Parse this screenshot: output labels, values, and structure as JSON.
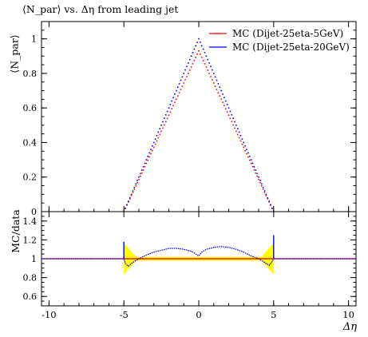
{
  "chart_data": [
    {
      "type": "scatter",
      "title": "⟨N_par⟩ vs. Δη from leading jet",
      "ylabel": "⟨N_par⟩",
      "xlabel": "",
      "xlim": [
        -10.5,
        10.5
      ],
      "ylim": [
        0,
        1.1
      ],
      "x_ticks": [
        -10,
        -5,
        0,
        5,
        10
      ],
      "y_ticks": [
        0,
        0.2,
        0.4,
        0.6,
        0.8,
        1
      ],
      "y_tick_labels": [
        "0",
        "0.2",
        "0.4",
        "0.6",
        "0.8",
        "1"
      ],
      "grid": false,
      "legend": "top-right",
      "series": [
        {
          "name": "MC (Dijet-25eta-5GeV)",
          "color": "#ff0000",
          "shape": "triangle",
          "peak": 0.93,
          "x_min": -5,
          "x_max": 5
        },
        {
          "name": "MC (Dijet-25eta-20GeV)",
          "color": "#0000ff",
          "shape": "triangle",
          "peak": 1.0,
          "x_min": -5,
          "x_max": 5
        }
      ]
    },
    {
      "type": "line",
      "ylabel": "MC/data",
      "xlabel": "Δη",
      "xlim": [
        -10.5,
        10.5
      ],
      "ylim": [
        0.5,
        1.5
      ],
      "x_ticks": [
        -10,
        -5,
        0,
        5,
        10
      ],
      "x_tick_labels": [
        "-10",
        "-5",
        "0",
        "5",
        "10"
      ],
      "y_ticks": [
        0.6,
        0.8,
        1,
        1.2,
        1.4
      ],
      "y_tick_labels": [
        "0.6",
        "0.8",
        "1",
        "1.2",
        "1.4"
      ],
      "band_color": "#ffff00",
      "series": [
        {
          "name": "MC (Dijet-25eta-5GeV)",
          "color": "#ff0000",
          "x": [
            -10.5,
            10.5
          ],
          "y": [
            1.0,
            1.0
          ]
        },
        {
          "name": "MC (Dijet-25eta-20GeV)",
          "color": "#0000ff",
          "x": [
            -10.5,
            -5.0,
            -4.9,
            -4.7,
            -4.5,
            -4.0,
            -3.5,
            -3.0,
            -2.5,
            -2.0,
            -1.5,
            -1.0,
            -0.5,
            -0.2,
            0.0,
            0.2,
            0.5,
            1.0,
            1.5,
            2.0,
            2.5,
            3.0,
            3.5,
            4.0,
            4.4,
            4.7,
            4.9,
            5.0,
            10.5
          ],
          "y": [
            1.0,
            1.0,
            0.95,
            0.92,
            0.95,
            1.0,
            1.04,
            1.07,
            1.09,
            1.11,
            1.11,
            1.1,
            1.08,
            1.05,
            1.03,
            1.07,
            1.1,
            1.12,
            1.13,
            1.12,
            1.1,
            1.07,
            1.03,
            1.0,
            0.96,
            0.93,
            0.97,
            1.0,
            1.0
          ]
        }
      ]
    }
  ]
}
